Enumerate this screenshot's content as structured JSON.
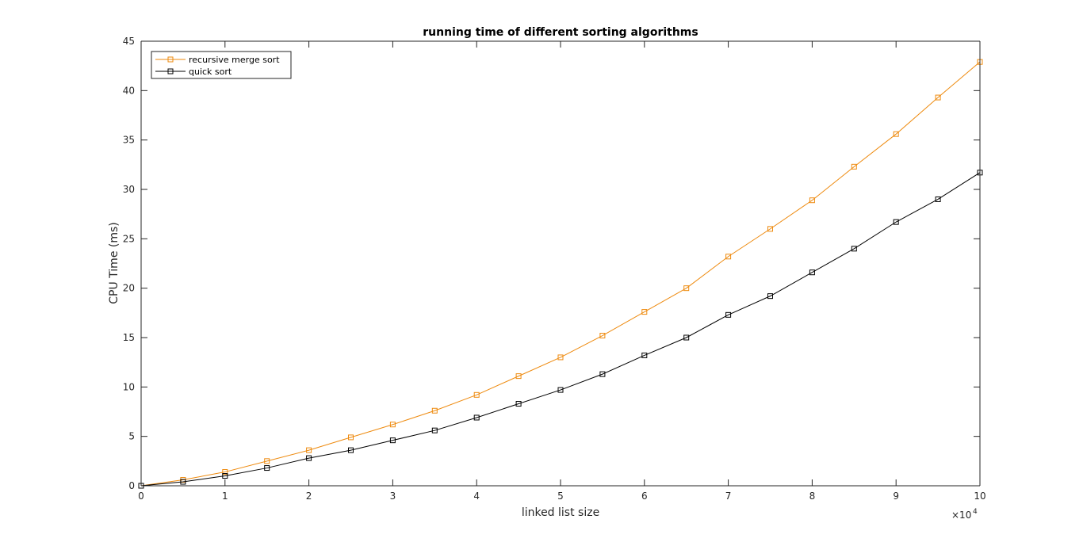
{
  "chart_data": {
    "type": "line",
    "title": "running time of different sorting algorithms",
    "xlabel": "linked list size",
    "ylabel": "CPU Time (ms)",
    "x_exponent_label": "×10",
    "x_exponent_power": "4",
    "xlim": [
      0,
      10
    ],
    "ylim": [
      0,
      45
    ],
    "x_ticks": [
      0,
      1,
      2,
      3,
      4,
      5,
      6,
      7,
      8,
      9,
      10
    ],
    "y_ticks": [
      0,
      5,
      10,
      15,
      20,
      25,
      30,
      35,
      40,
      45
    ],
    "grid": false,
    "legend_position": "top-left",
    "x": [
      0,
      0.5,
      1,
      1.5,
      2,
      2.5,
      3,
      3.5,
      4,
      4.5,
      5,
      5.5,
      6,
      6.5,
      7,
      7.5,
      8,
      8.5,
      9,
      9.5,
      10
    ],
    "series": [
      {
        "name": "recursive merge sort",
        "color": "#ee8a0e",
        "marker": "square",
        "values": [
          0,
          0.6,
          1.4,
          2.5,
          3.6,
          4.9,
          6.2,
          7.6,
          9.2,
          11.1,
          13.0,
          15.2,
          17.6,
          20.0,
          23.2,
          26.0,
          28.9,
          32.3,
          35.6,
          39.3,
          42.9
        ]
      },
      {
        "name": "quick sort",
        "color": "#000000",
        "marker": "square",
        "values": [
          0,
          0.4,
          1.0,
          1.8,
          2.8,
          3.6,
          4.6,
          5.6,
          6.9,
          8.3,
          9.7,
          11.3,
          13.2,
          15.0,
          17.3,
          19.2,
          21.6,
          24.0,
          26.7,
          29.0,
          31.7
        ]
      }
    ]
  }
}
